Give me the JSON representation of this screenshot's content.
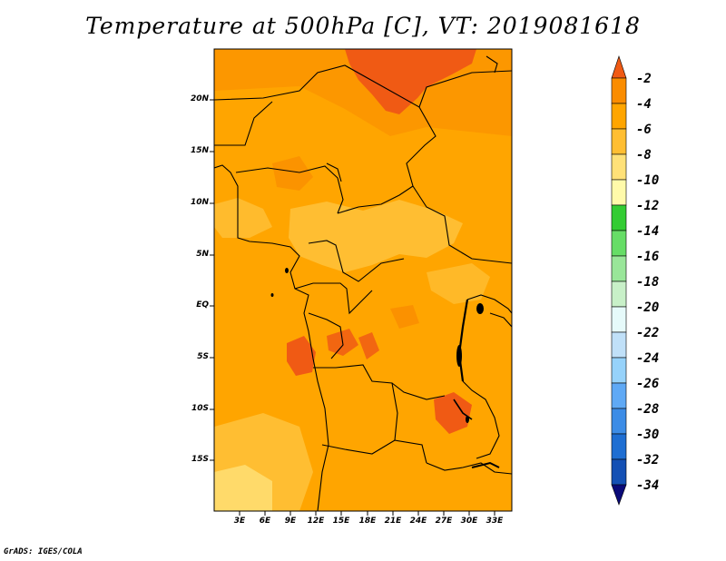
{
  "title": "Temperature at 500hPa [C], VT: 2019081618",
  "credit": "GrADS: IGES/COLA",
  "map": {
    "lat_labels": [
      "20N",
      "15N",
      "10N",
      "5N",
      "EQ",
      "5S",
      "10S",
      "15S"
    ],
    "lon_labels": [
      "3E",
      "6E",
      "9E",
      "12E",
      "15E",
      "18E",
      "21E",
      "24E",
      "27E",
      "30E",
      "33E"
    ]
  },
  "colorbar": {
    "labels": [
      "-2",
      "-4",
      "-6",
      "-8",
      "-10",
      "-12",
      "-14",
      "-16",
      "-18",
      "-20",
      "-22",
      "-24",
      "-26",
      "-28",
      "-30",
      "-32",
      "-34"
    ],
    "colors": [
      "#f05a14",
      "#fa8c00",
      "#ffa500",
      "#ffbe32",
      "#ffe178",
      "#fffaaa",
      "#33cc33",
      "#66dd66",
      "#99e699",
      "#c8f0c8",
      "#e6fafa",
      "#c0e0f8",
      "#96d2fa",
      "#5fa9f5",
      "#3c8ce6",
      "#1e6ed2",
      "#1450b4",
      "#0a0a78"
    ]
  },
  "colors": {
    "main_fill": "#ffa500",
    "warm_fill": "#fa8c00",
    "hot_fill": "#f05a14",
    "cool_fill": "#ffbe32",
    "pale_fill": "#ffe178"
  }
}
